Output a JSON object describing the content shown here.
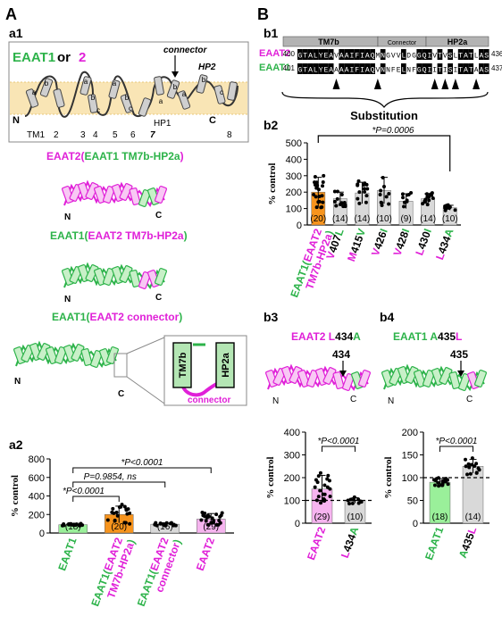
{
  "panel_labels": {
    "A": "A",
    "B": "B",
    "a1": "a1",
    "a2": "a2",
    "b1": "b1",
    "b2": "b2",
    "b3": "b3",
    "b4": "b4"
  },
  "colors": {
    "eaat1": "#2db34a",
    "eaat2": "#e020d8",
    "orange": "#f7941d",
    "gray": "#cfcfcf",
    "membrane": "#f8dfa3"
  },
  "topology": {
    "title_eaat1": "EAAT1",
    "title_or": " or ",
    "title_two": "2",
    "connector": "connector",
    "hp2": "HP2",
    "hp1": "HP1",
    "n": "N",
    "c": "C",
    "tm_numbers": [
      "TM1",
      "2",
      "3",
      "4",
      "5",
      "6",
      "7",
      "8"
    ],
    "segment_letters": [
      "a",
      "b",
      "a",
      "b",
      "c",
      "a",
      "b",
      "c",
      "a",
      "b",
      "a",
      "b",
      "c"
    ]
  },
  "chimera1": {
    "outer": "EAAT2",
    "open": "(",
    "inner": "EAAT1 TM7b-HP2a",
    "close": ")"
  },
  "chimera2": {
    "outer": "EAAT1",
    "open": "(",
    "inner": "EAAT2 TM7b-HP2a",
    "close": ")"
  },
  "chimera3": {
    "outer": "EAAT1",
    "open": "(",
    "inner": "EAAT2 connector",
    "close": ")"
  },
  "inset": {
    "tm7b": "TM7b",
    "hp2a": "HP2a",
    "connector": "connector"
  },
  "alignment": {
    "header_tm7b": "TM7b",
    "header_connector": "Connector",
    "header_hp2a": "HP2a",
    "rows": [
      {
        "name": "EAAT2",
        "start": "400",
        "seq": "GTALYEAVAAIFIAQMNGVVLDGGQIVTVSLTATLAS",
        "end": "436"
      },
      {
        "name": "EAAT1",
        "start": "401",
        "seq": "GTALYEAAAAIFIAQVNNFELNFGQIITISITATAAS",
        "end": "437"
      }
    ],
    "substitution": "Substitution"
  },
  "charts": {
    "a2": {
      "ylabel": "% control",
      "yticks": [
        "0",
        "200",
        "400",
        "600",
        "800"
      ],
      "ns_values": [
        "(18)",
        "(20)",
        "(16)",
        "(29)"
      ],
      "stats": [
        "*P<0.0001",
        "P=0.9854, ns",
        "*P<0.0001"
      ],
      "xlabels": [
        [
          {
            "t": "EAAT1",
            "c": "eaat1"
          }
        ],
        [
          {
            "t": "EAAT1(",
            "c": "eaat1"
          },
          {
            "t": "EAAT2",
            "c": "eaat2"
          },
          {
            "t": "TM7b-HP2a",
            "c": "eaat2"
          },
          {
            "t": ")",
            "c": "eaat1"
          }
        ],
        [
          {
            "t": "EAAT1(",
            "c": "eaat1"
          },
          {
            "t": "EAAT2",
            "c": "eaat2"
          },
          {
            "t": "connector",
            "c": "eaat2"
          },
          {
            "t": ")",
            "c": "eaat1"
          }
        ],
        [
          {
            "t": "EAAT2",
            "c": "eaat2"
          }
        ]
      ]
    },
    "b2": {
      "ylabel": "% control",
      "yticks": [
        "0",
        "100",
        "200",
        "300",
        "400",
        "500"
      ],
      "ns_values": [
        "(20)",
        "(14)",
        "(14)",
        "(10)",
        "(9)",
        "(14)",
        "(10)"
      ],
      "stats": [
        "*P=0.0006"
      ],
      "xlabels": [
        [
          {
            "t": "EAAT1(EAAT2",
            "c": "eaat2"
          },
          {
            "t": "TM7b-HP2a)",
            "c": "eaat2"
          }
        ],
        [
          {
            "t": "V407L",
            "c": "mix"
          }
        ],
        [
          {
            "t": "M415V",
            "c": "mix"
          }
        ],
        [
          {
            "t": "V426I",
            "c": "mix"
          }
        ],
        [
          {
            "t": "V428I",
            "c": "mix"
          }
        ],
        [
          {
            "t": "L430I",
            "c": "mix"
          }
        ],
        [
          {
            "t": "L434A",
            "c": "mix"
          }
        ]
      ]
    },
    "b3": {
      "title_a": "EAAT2 ",
      "title_b": "L",
      "title_c": "434",
      "title_d": "A",
      "residue": "434",
      "ylabel": "% control",
      "yticks": [
        "0",
        "100",
        "200",
        "300",
        "400"
      ],
      "ns_values": [
        "(29)",
        "(10)"
      ],
      "stats": [
        "*P<0.0001"
      ],
      "xlabels": [
        "EAAT2",
        "L434A"
      ]
    },
    "b4": {
      "title_a": "EAAT1 ",
      "title_b": "A",
      "title_c": "435",
      "title_d": "L",
      "residue": "435",
      "ylabel": "% control",
      "yticks": [
        "0",
        "50",
        "100",
        "150",
        "200"
      ],
      "ns_values": [
        "(18)",
        "(14)"
      ],
      "stats": [
        "*P<0.0001"
      ],
      "xlabels": [
        "EAAT1",
        "A435L"
      ]
    }
  },
  "chart_data": [
    {
      "type": "bar",
      "panel": "a2",
      "categories": [
        "EAAT1",
        "EAAT1(EAAT2 TM7b-HP2a)",
        "EAAT1(EAAT2 connector)",
        "EAAT2"
      ],
      "values": [
        90,
        200,
        95,
        150
      ],
      "errors": [
        10,
        90,
        15,
        60
      ],
      "n": [
        18,
        20,
        16,
        29
      ],
      "ylabel": "% control",
      "ylim": [
        0,
        800
      ],
      "colors": [
        "#9af09a",
        "#f7941d",
        "#d9d9d9",
        "#f6b4ef"
      ]
    },
    {
      "type": "bar",
      "panel": "b2",
      "categories": [
        "EAAT1(EAAT2 TM7b-HP2a)",
        "V407L",
        "M415V",
        "V426I",
        "V428I",
        "L430I",
        "L434A"
      ],
      "values": [
        200,
        160,
        195,
        210,
        145,
        160,
        105
      ],
      "errors": [
        90,
        40,
        65,
        80,
        45,
        30,
        15
      ],
      "n": [
        20,
        14,
        14,
        10,
        9,
        14,
        10
      ],
      "ylabel": "% control",
      "ylim": [
        0,
        500
      ],
      "colors": [
        "#f7941d",
        "#d9d9d9",
        "#d9d9d9",
        "#d9d9d9",
        "#d9d9d9",
        "#d9d9d9",
        "#d9d9d9"
      ]
    },
    {
      "type": "bar",
      "panel": "b3",
      "categories": [
        "EAAT2",
        "L434A"
      ],
      "values": [
        150,
        100
      ],
      "errors": [
        60,
        12
      ],
      "n": [
        29,
        10
      ],
      "ylabel": "% control",
      "ylim": [
        0,
        400
      ],
      "colors": [
        "#f6b4ef",
        "#d9d9d9"
      ]
    },
    {
      "type": "bar",
      "panel": "b4",
      "categories": [
        "EAAT1",
        "A435L"
      ],
      "values": [
        90,
        125
      ],
      "errors": [
        8,
        15
      ],
      "n": [
        18,
        14
      ],
      "ylabel": "% control",
      "ylim": [
        0,
        200
      ],
      "colors": [
        "#9af09a",
        "#d9d9d9"
      ]
    }
  ]
}
